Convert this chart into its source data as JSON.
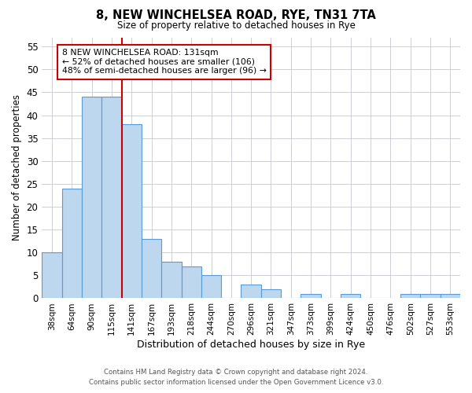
{
  "title1": "8, NEW WINCHELSEA ROAD, RYE, TN31 7TA",
  "title2": "Size of property relative to detached houses in Rye",
  "xlabel": "Distribution of detached houses by size in Rye",
  "ylabel": "Number of detached properties",
  "bar_labels": [
    "38sqm",
    "64sqm",
    "90sqm",
    "115sqm",
    "141sqm",
    "167sqm",
    "193sqm",
    "218sqm",
    "244sqm",
    "270sqm",
    "296sqm",
    "321sqm",
    "347sqm",
    "373sqm",
    "399sqm",
    "424sqm",
    "450sqm",
    "476sqm",
    "502sqm",
    "527sqm",
    "553sqm"
  ],
  "bar_values": [
    10,
    24,
    44,
    44,
    38,
    13,
    8,
    7,
    5,
    0,
    3,
    2,
    0,
    1,
    0,
    1,
    0,
    0,
    1,
    1,
    1
  ],
  "bar_color": "#bdd7ee",
  "bar_edge_color": "#5b9bd5",
  "vline_x_index": 4,
  "vline_color": "#cc0000",
  "ylim": [
    0,
    57
  ],
  "yticks": [
    0,
    5,
    10,
    15,
    20,
    25,
    30,
    35,
    40,
    45,
    50,
    55
  ],
  "annotation_title": "8 NEW WINCHELSEA ROAD: 131sqm",
  "annotation_line1": "← 52% of detached houses are smaller (106)",
  "annotation_line2": "48% of semi-detached houses are larger (96) →",
  "annotation_box_color": "#ffffff",
  "annotation_box_edge": "#cc0000",
  "footer1": "Contains HM Land Registry data © Crown copyright and database right 2024.",
  "footer2": "Contains public sector information licensed under the Open Government Licence v3.0.",
  "bg_color": "#ffffff",
  "grid_color": "#c8c8d0"
}
